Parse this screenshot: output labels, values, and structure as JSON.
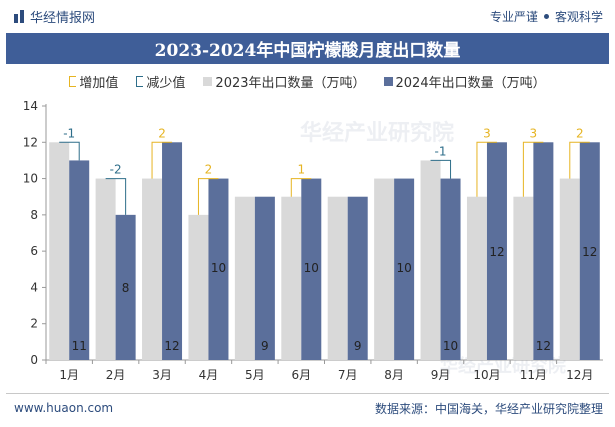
{
  "header": {
    "brand": "华经情报网",
    "tagline_left": "专业严谨",
    "tagline_right": "客观科学"
  },
  "footer": {
    "website": "www.huaon.com",
    "source": "数据来源：中国海关，华经产业研究院整理"
  },
  "watermark": "华经产业研究院",
  "colors": {
    "band": "#3f5e98",
    "y2023": "#d9d9d9",
    "y2024": "#5b6f9b",
    "increase": "#e6b422",
    "decrease": "#2e6e8a"
  },
  "chart_data": {
    "type": "bar",
    "title": "2023-2024年中国柠檬酸月度出口数量",
    "categories": [
      "1月",
      "2月",
      "3月",
      "4月",
      "5月",
      "6月",
      "7月",
      "8月",
      "9月",
      "10月",
      "11月",
      "12月"
    ],
    "series": [
      {
        "name": "2023年出口数量（万吨）",
        "values": [
          12,
          10,
          10,
          8,
          9,
          9,
          9,
          10,
          11,
          9,
          9,
          10
        ]
      },
      {
        "name": "2024年出口数量（万吨）",
        "values": [
          11,
          8,
          12,
          10,
          9,
          10,
          9,
          10,
          10,
          12,
          12,
          12
        ]
      }
    ],
    "change": {
      "labels": [
        "-1",
        "-2",
        "2",
        "2",
        "",
        "1",
        "",
        "",
        "-1",
        "3",
        "3",
        "2"
      ],
      "legend_increase": "增加值",
      "legend_decrease": "减少值"
    },
    "bar_labels": [
      "11",
      "8",
      "12",
      "10",
      "9",
      "10",
      "9",
      "10",
      "10",
      "12",
      "12",
      "12"
    ],
    "yticks": [
      0,
      2,
      4,
      6,
      8,
      10,
      12,
      14
    ],
    "ylim": [
      0,
      14
    ],
    "xlabel": "",
    "ylabel": "",
    "legend_position": "top",
    "grid": false
  }
}
